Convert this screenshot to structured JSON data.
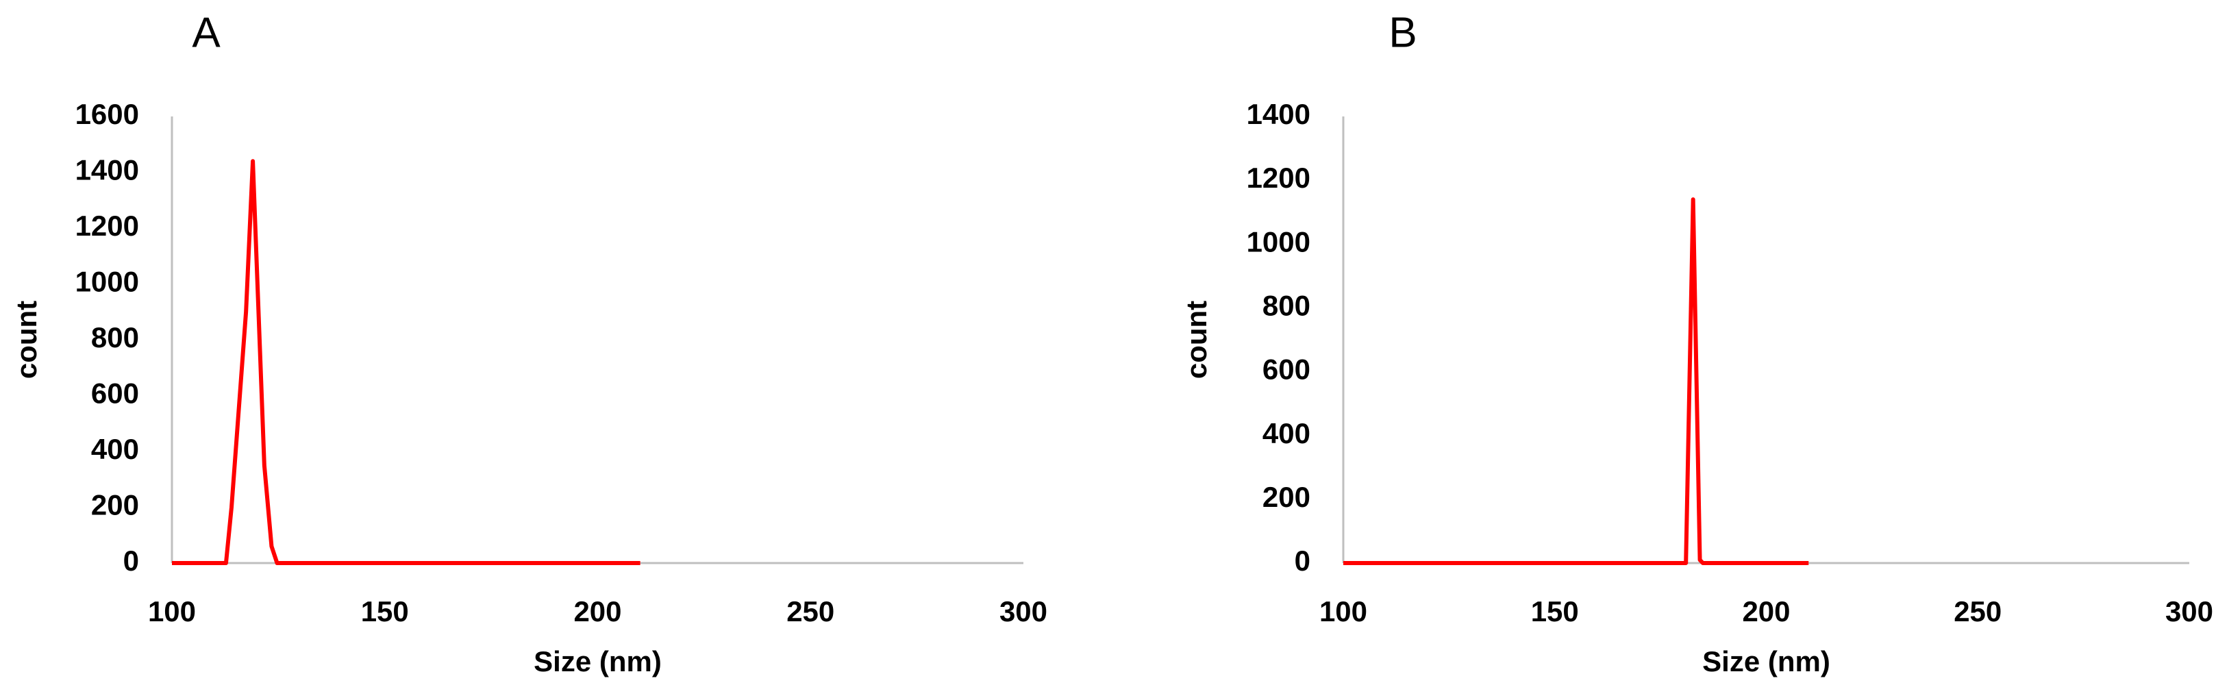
{
  "chart_data": [
    {
      "type": "line",
      "label": "A",
      "xlabel": "Size (nm)",
      "ylabel": "count",
      "xlim": [
        100,
        300
      ],
      "xticks": [
        100,
        150,
        200,
        250,
        300
      ],
      "ylim": [
        0,
        1600
      ],
      "yticks": [
        0,
        200,
        400,
        600,
        800,
        1000,
        1200,
        1400,
        1600
      ],
      "grid": false,
      "series": [
        {
          "name": "A",
          "color": "#ff0000",
          "x": [
            100,
            112.7,
            114,
            117.4,
            119,
            121.7,
            123.4,
            124.7,
            210
          ],
          "values": [
            0,
            0,
            200,
            900,
            1440,
            350,
            60,
            0,
            0
          ]
        }
      ]
    },
    {
      "type": "line",
      "label": "B",
      "xlabel": "Size (nm)",
      "ylabel": "count",
      "xlim": [
        100,
        300
      ],
      "xticks": [
        100,
        150,
        200,
        250,
        300
      ],
      "ylim": [
        0,
        1400
      ],
      "yticks": [
        0,
        200,
        400,
        600,
        800,
        1000,
        1200,
        1400
      ],
      "grid": false,
      "series": [
        {
          "name": "B",
          "color": "#ff0000",
          "x": [
            100,
            181,
            182.7,
            184.3,
            185,
            210
          ],
          "values": [
            0,
            0,
            1140,
            10,
            0,
            0
          ]
        }
      ]
    }
  ]
}
